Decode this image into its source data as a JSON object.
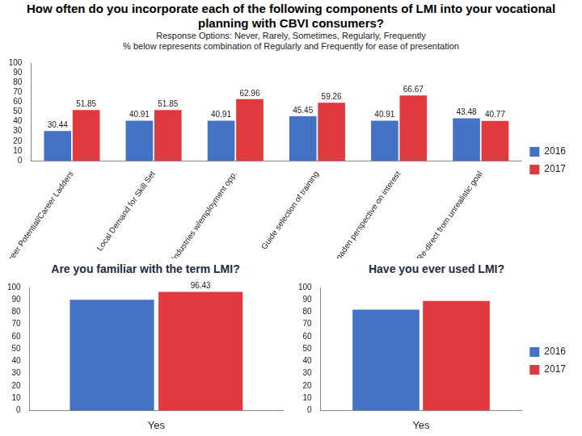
{
  "chart_data": [
    {
      "type": "bar",
      "title": "How often do you incorporate each of the following components of LMI into your vocational planning with CBVI consumers?",
      "subtitle": [
        "Response Options: Never, Rarely, Sometimes, Regularly, Frequently",
        "% below represents combination of Regularly and Frequently for ease of presentation"
      ],
      "categories": [
        "Career Potential/Career Ladders",
        "Local Demand for Skill Set",
        "Industries w/employment opp.",
        "Guide selection of training",
        "Broaden perspective on interest",
        "Re-direct from unrealistic goal"
      ],
      "series": [
        {
          "name": "2016",
          "color": "#4472c4",
          "values": [
            30.44,
            40.91,
            40.91,
            45.45,
            40.91,
            43.48
          ]
        },
        {
          "name": "2017",
          "color": "#e0393e",
          "values": [
            51.85,
            51.85,
            62.96,
            59.26,
            66.67,
            40.77
          ]
        }
      ],
      "ylim": [
        0,
        100
      ],
      "yticks": [
        0,
        10,
        20,
        30,
        40,
        50,
        60,
        70,
        80,
        90,
        100
      ],
      "grid": false,
      "legend": "right",
      "data_labels": true
    },
    {
      "type": "bar",
      "title": "Are you familiar with the term LMI?",
      "categories": [
        "Yes"
      ],
      "series": [
        {
          "name": "2016",
          "color": "#4472c4",
          "values": [
            90
          ]
        },
        {
          "name": "2017",
          "color": "#e0393e",
          "values": [
            96.43
          ],
          "value_labels": [
            "96.43"
          ]
        }
      ],
      "ylim": [
        0,
        100
      ],
      "yticks": [
        0,
        10,
        20,
        30,
        40,
        50,
        60,
        70,
        80,
        90,
        100
      ],
      "grid": false
    },
    {
      "type": "bar",
      "title": "Have you ever used LMI?",
      "categories": [
        "Yes"
      ],
      "series": [
        {
          "name": "2016",
          "color": "#4472c4",
          "values": [
            82
          ]
        },
        {
          "name": "2017",
          "color": "#e0393e",
          "values": [
            89
          ]
        }
      ],
      "ylim": [
        0,
        100
      ],
      "yticks": [
        0,
        10,
        20,
        30,
        40,
        50,
        60,
        70,
        80,
        90,
        100
      ],
      "grid": false,
      "legend": "right"
    }
  ]
}
